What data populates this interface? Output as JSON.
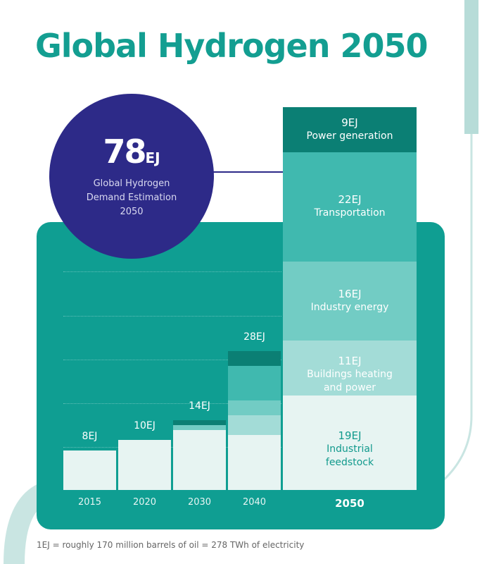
{
  "chart_data": {
    "type": "stacked_bar",
    "title": "Global Hydrogen 2050",
    "categories": [
      "2015",
      "2020",
      "2030",
      "2040",
      "2050"
    ],
    "totals": [
      8,
      10,
      14,
      28,
      78
    ],
    "total_labels": [
      "8EJ",
      "10EJ",
      "14EJ",
      "28EJ",
      null
    ],
    "unit": "EJ",
    "circle_caption": "Global Hydrogen Demand Estimation",
    "ylim": [
      0,
      78
    ],
    "series": [
      {
        "name": "Industrial feedstock",
        "color": "#e7f4f2",
        "values": [
          8,
          10,
          12,
          11,
          19
        ],
        "value_labels": [
          null,
          null,
          null,
          null,
          "19EJ"
        ]
      },
      {
        "name": "Buildings heating and power",
        "color": "#a3dcd7",
        "values": [
          0,
          0,
          0,
          4,
          11
        ],
        "value_labels": [
          null,
          null,
          null,
          null,
          "11EJ"
        ]
      },
      {
        "name": "Industry energy",
        "color": "#72ccc4",
        "values": [
          0,
          0,
          1,
          3,
          16
        ],
        "value_labels": [
          null,
          null,
          null,
          null,
          "16EJ"
        ]
      },
      {
        "name": "Transportation",
        "color": "#40b9af",
        "values": [
          0,
          0,
          0,
          7,
          22
        ],
        "value_labels": [
          null,
          null,
          null,
          null,
          "22EJ"
        ]
      },
      {
        "name": "Power generation",
        "color": "#0b7f74",
        "values": [
          0,
          0,
          1,
          3,
          9
        ],
        "value_labels": [
          null,
          null,
          null,
          null,
          "9EJ"
        ]
      }
    ],
    "footnote": "1EJ = roughly 170 million barrels of oil = 278 TWh of electricity"
  }
}
